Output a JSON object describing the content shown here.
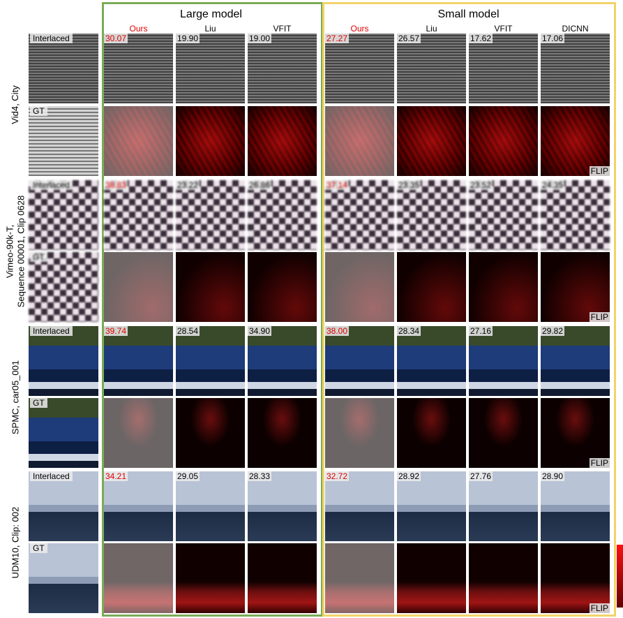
{
  "groups": [
    {
      "title": "Large model",
      "methods": [
        "Ours",
        "Liu",
        "VFIT"
      ]
    },
    {
      "title": "Small model",
      "methods": [
        "Ours",
        "Liu",
        "VFIT",
        "DICNN"
      ]
    }
  ],
  "input_labels": {
    "interlaced": "Interlaced",
    "gt": "GT"
  },
  "flip_label": "FLIP",
  "sections": [
    {
      "label": [
        "Vid4, City"
      ],
      "scores": [
        [
          "30.07",
          "19.90",
          "19.00"
        ],
        [
          "27.27",
          "26.57",
          "17.62",
          "17.06"
        ]
      ]
    },
    {
      "label": [
        "Vimeo-90k-T,",
        "Sequence 00001, Clip 0628"
      ],
      "scores": [
        [
          "38.83",
          "23.22",
          "26.86"
        ],
        [
          "37.14",
          "23.35",
          "23.52",
          "24.35"
        ]
      ]
    },
    {
      "label": [
        "SPMC, car05_001"
      ],
      "scores": [
        [
          "39.74",
          "28.54",
          "34.90"
        ],
        [
          "38.00",
          "28.34",
          "27.16",
          "29.82"
        ]
      ]
    },
    {
      "label": [
        "UDM10, Clip: 002"
      ],
      "scores": [
        [
          "34.21",
          "29.05",
          "28.33"
        ],
        [
          "32.72",
          "28.92",
          "27.76",
          "28.90"
        ]
      ]
    }
  ]
}
